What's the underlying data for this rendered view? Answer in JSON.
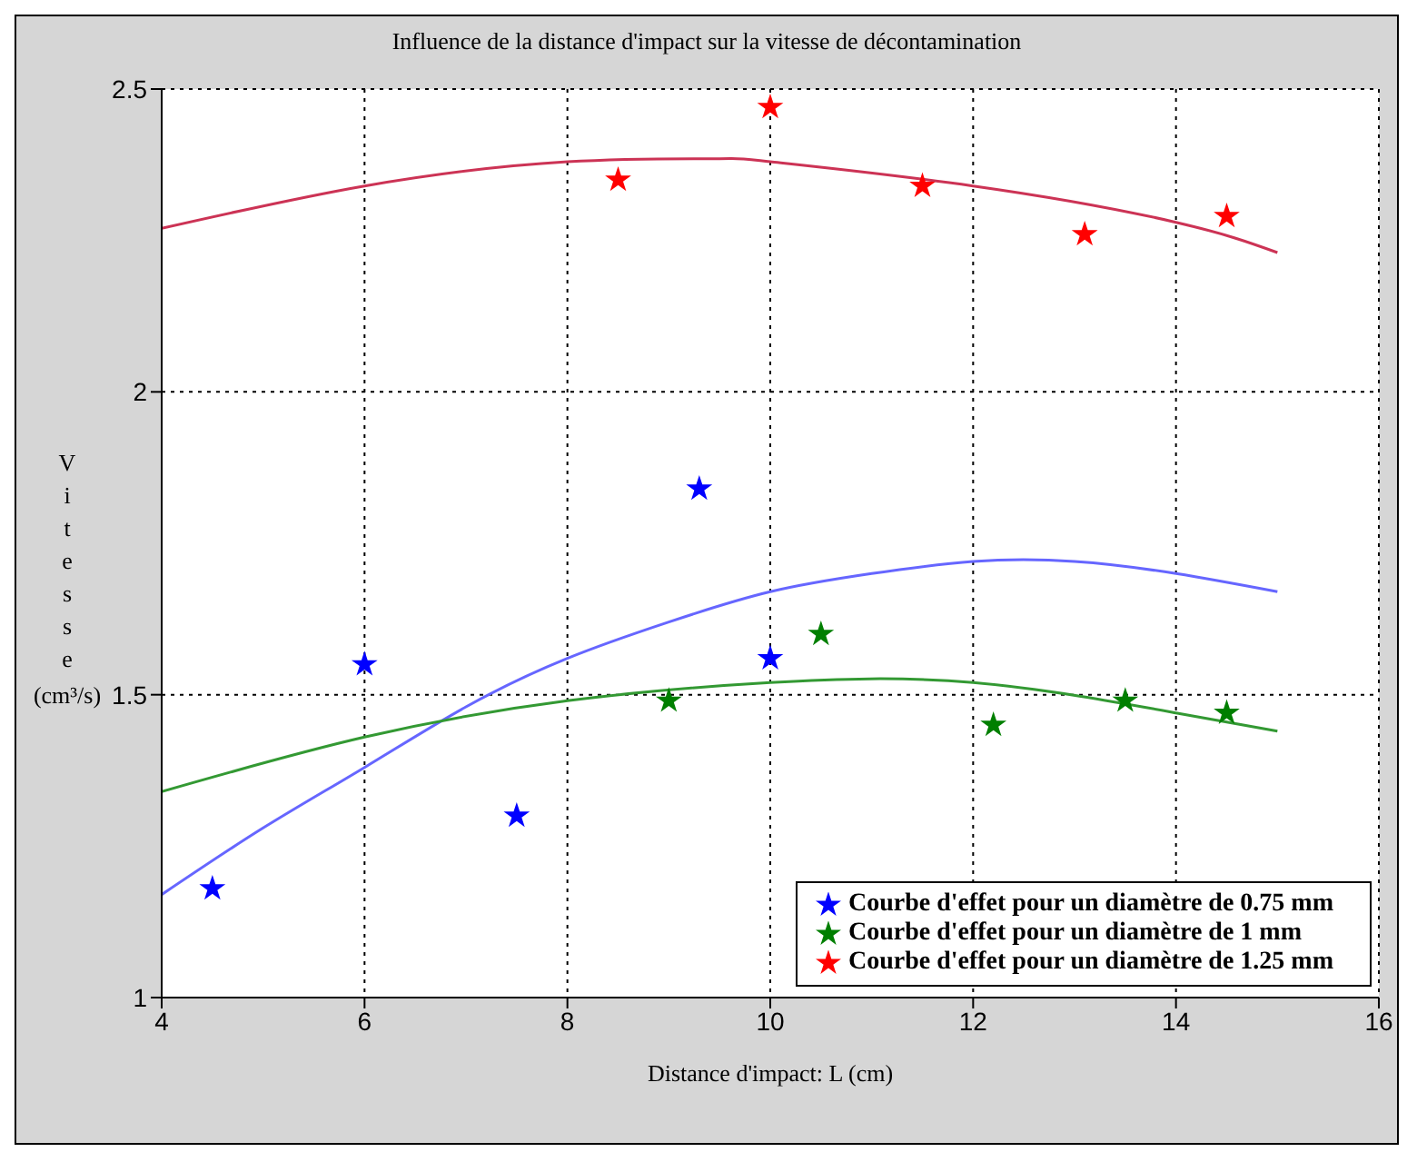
{
  "chart_data": {
    "type": "scatter",
    "title": "Influence de la distance d'impact sur la vitesse de décontamination",
    "xlabel": "Distance d'impact: L (cm)",
    "ylabel": "Vitesse (cm³/s)",
    "xlim": [
      4,
      16
    ],
    "xticks": [
      4,
      6,
      8,
      10,
      12,
      14,
      16
    ],
    "ylim": [
      1,
      2.5
    ],
    "yticks": [
      1,
      1.5,
      2,
      2.5
    ],
    "grid": true,
    "legend": "bottom right",
    "marker": "star",
    "series": [
      {
        "name": "Courbe d'effet pour un diamètre de 0.75 mm",
        "color": "#0000ff",
        "x": [
          4.5,
          6,
          7.5,
          9.3,
          10
        ],
        "values": [
          1.18,
          1.55,
          1.3,
          1.84,
          1.56
        ]
      },
      {
        "name": "Courbe d'effet pour un diamètre de 1 mm",
        "color": "#007f00",
        "x": [
          9,
          10.5,
          12.2,
          13.5,
          14.5
        ],
        "values": [
          1.49,
          1.6,
          1.45,
          1.49,
          1.47
        ]
      },
      {
        "name": "Courbe d'effet pour un diamètre de 1.25 mm",
        "color": "#ff0000",
        "x": [
          8.5,
          10,
          11.5,
          13.1,
          14.5
        ],
        "values": [
          2.35,
          2.47,
          2.34,
          2.26,
          2.29
        ]
      },
      {
        "type": "line",
        "marker": "none",
        "color": "#6666ff",
        "x": [
          4,
          5,
          6,
          7,
          8,
          9,
          10,
          11,
          12,
          13,
          14,
          15
        ],
        "values": [
          1.17,
          1.28,
          1.38,
          1.48,
          1.56,
          1.62,
          1.67,
          1.7,
          1.72,
          1.72,
          1.7,
          1.67
        ]
      },
      {
        "type": "line",
        "marker": "none",
        "color": "#339933",
        "x": [
          4,
          6,
          8,
          10,
          12,
          14,
          15
        ],
        "values": [
          1.34,
          1.43,
          1.49,
          1.52,
          1.52,
          1.47,
          1.44
        ]
      },
      {
        "type": "line",
        "marker": "none",
        "color": "#cc3355",
        "x": [
          4,
          6,
          8,
          9.5,
          10,
          12,
          14,
          15
        ],
        "values": [
          2.27,
          2.34,
          2.38,
          2.385,
          2.38,
          2.34,
          2.28,
          2.23
        ]
      }
    ]
  }
}
